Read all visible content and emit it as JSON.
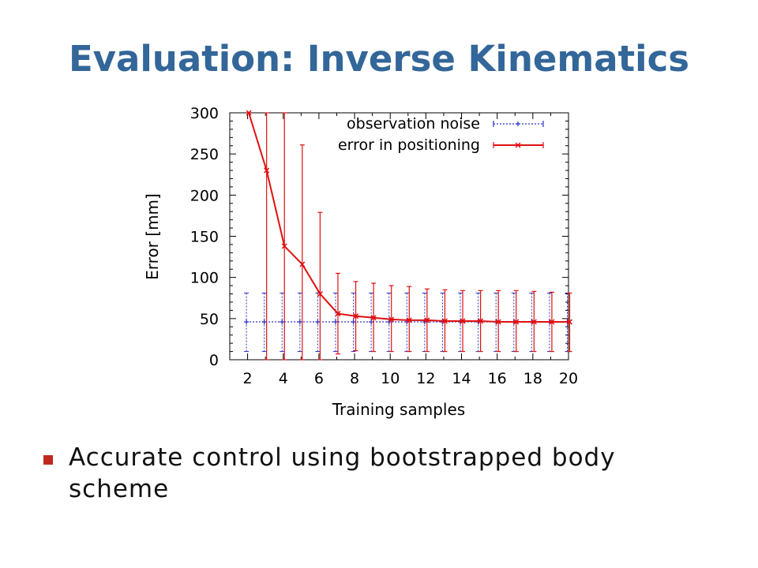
{
  "slide": {
    "title": "Evaluation: Inverse Kinematics",
    "bullet_color": "#c0281e",
    "bullets": [
      "Accurate control using bootstrapped body scheme"
    ]
  },
  "chart_data": {
    "type": "line",
    "xlabel": "Training samples",
    "ylabel": "Error [mm]",
    "xlim": [
      1,
      20
    ],
    "ylim": [
      0,
      300
    ],
    "xticks": [
      2,
      4,
      6,
      8,
      10,
      12,
      14,
      16,
      18,
      20
    ],
    "yticks": [
      0,
      50,
      100,
      150,
      200,
      250,
      300
    ],
    "grid": false,
    "legend_position": "top-right",
    "series": [
      {
        "name": "observation noise",
        "color": "#2a35c8",
        "style": "dotted",
        "marker": "+",
        "x": [
          2,
          3,
          4,
          5,
          6,
          7,
          8,
          9,
          10,
          11,
          12,
          13,
          14,
          15,
          16,
          17,
          18,
          19,
          20
        ],
        "y": [
          46,
          46,
          46,
          46,
          46,
          46,
          46,
          46,
          46,
          46,
          46,
          46,
          46,
          46,
          46,
          46,
          46,
          46,
          46
        ],
        "y_low": [
          10,
          10,
          10,
          10,
          10,
          10,
          10,
          10,
          10,
          10,
          10,
          10,
          10,
          10,
          10,
          10,
          10,
          10,
          10
        ],
        "y_high": [
          81,
          81,
          81,
          81,
          81,
          81,
          81,
          81,
          81,
          81,
          81,
          81,
          81,
          81,
          81,
          81,
          81,
          81,
          81
        ]
      },
      {
        "name": "error in positioning",
        "color": "#e01010",
        "style": "solid",
        "marker": "x",
        "x": [
          2,
          3,
          4,
          5,
          6,
          7,
          8,
          9,
          10,
          11,
          12,
          13,
          14,
          15,
          16,
          17,
          18,
          19,
          20
        ],
        "y": [
          300,
          230,
          138,
          116,
          80,
          56,
          53,
          51,
          49,
          48,
          48,
          47,
          47,
          47,
          46,
          46,
          46,
          46,
          46
        ],
        "y_low": [
          300,
          0,
          0,
          0,
          0,
          7,
          11,
          10,
          10,
          10,
          10,
          10,
          10,
          10,
          10,
          10,
          10,
          10,
          10
        ],
        "y_high": [
          300,
          300,
          300,
          261,
          179,
          105,
          95,
          93,
          90,
          89,
          86,
          85,
          84,
          84,
          84,
          84,
          83,
          82,
          81
        ]
      }
    ]
  }
}
